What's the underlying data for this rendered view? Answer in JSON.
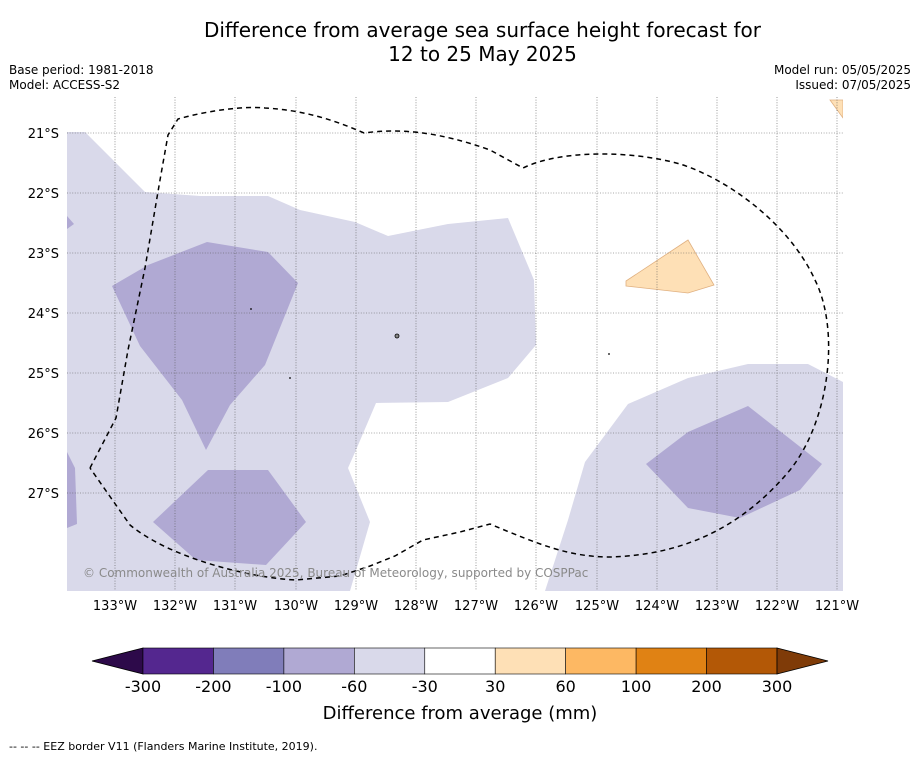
{
  "title_line1": "Difference from average sea surface height forecast for",
  "title_line2": "12 to 25 May 2025",
  "base_period": "Base period: 1981-2018",
  "model": "Model: ACCESS-S2",
  "model_run": "Model run: 05/05/2025",
  "issued": "Issued: 07/05/2025",
  "credit": "© Commonwealth of Australia 2025, Bureau of Meteorology, supported by COSPPac",
  "colorbar": {
    "title": "Difference from average (mm)",
    "tick_labels": [
      "-300",
      "-200",
      "-100",
      "-60",
      "-30",
      "30",
      "60",
      "100",
      "200",
      "300"
    ],
    "colors": [
      "#2d0a4a",
      "#54278f",
      "#807dba",
      "#b0a9d3",
      "#d9d9ea",
      "#ffffff",
      "#fee0b6",
      "#fdb863",
      "#e08214",
      "#b35806",
      "#7f3b08"
    ]
  },
  "map": {
    "lat_labels": [
      "21°S",
      "22°S",
      "23°S",
      "24°S",
      "25°S",
      "26°S",
      "27°S"
    ],
    "lon_labels": [
      "133°W",
      "132°W",
      "131°W",
      "130°W",
      "129°W",
      "128°W",
      "127°W",
      "126°W",
      "125°W",
      "124°W",
      "123°W",
      "122°W",
      "121°W"
    ]
  },
  "footer": "--  --  -- EEZ border V11 (Flanders Marine Institute, 2019)."
}
